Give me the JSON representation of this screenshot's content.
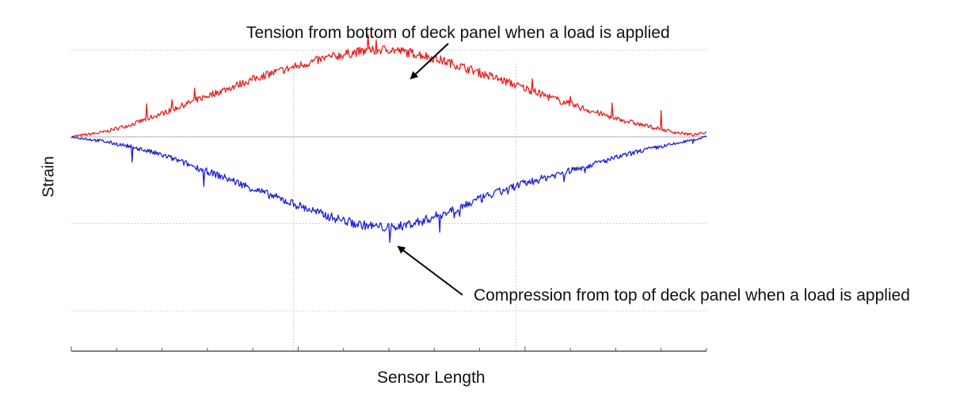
{
  "chart_data": {
    "type": "line",
    "title": "",
    "xlabel": "Sensor Length",
    "ylabel": "Strain",
    "grid": true,
    "legend": "none",
    "xlim": [
      0,
      1
    ],
    "ylim": [
      -2.4,
      1.0
    ],
    "series": [
      {
        "color": "#e8211f",
        "x": [
          0.0,
          0.05,
          0.1,
          0.15,
          0.2,
          0.25,
          0.3,
          0.35,
          0.4,
          0.45,
          0.5,
          0.55,
          0.6,
          0.65,
          0.7,
          0.75,
          0.8,
          0.85,
          0.9,
          0.95,
          0.98,
          1.0
        ],
        "y": [
          0.0,
          0.05,
          0.15,
          0.28,
          0.42,
          0.55,
          0.68,
          0.78,
          0.88,
          0.95,
          0.98,
          0.92,
          0.82,
          0.7,
          0.58,
          0.45,
          0.33,
          0.22,
          0.13,
          0.05,
          0.02,
          0.05
        ]
      },
      {
        "color": "#1f1fd6",
        "x": [
          0.0,
          0.05,
          0.1,
          0.15,
          0.2,
          0.25,
          0.3,
          0.35,
          0.4,
          0.45,
          0.5,
          0.55,
          0.6,
          0.65,
          0.7,
          0.75,
          0.8,
          0.85,
          0.9,
          0.95,
          1.0
        ],
        "y": [
          0.0,
          -0.05,
          -0.12,
          -0.22,
          -0.35,
          -0.48,
          -0.62,
          -0.75,
          -0.88,
          -0.98,
          -1.02,
          -0.95,
          -0.82,
          -0.68,
          -0.55,
          -0.45,
          -0.35,
          -0.25,
          -0.15,
          -0.08,
          0.0
        ]
      }
    ],
    "annotations": [
      {
        "text": "Tension from bottom of deck panel when a load is applied",
        "x": 0.52,
        "y": 1.04
      },
      {
        "text": "Compression  from top of deck panel when a load is applied",
        "x": 0.52,
        "y": -1.03
      }
    ]
  }
}
